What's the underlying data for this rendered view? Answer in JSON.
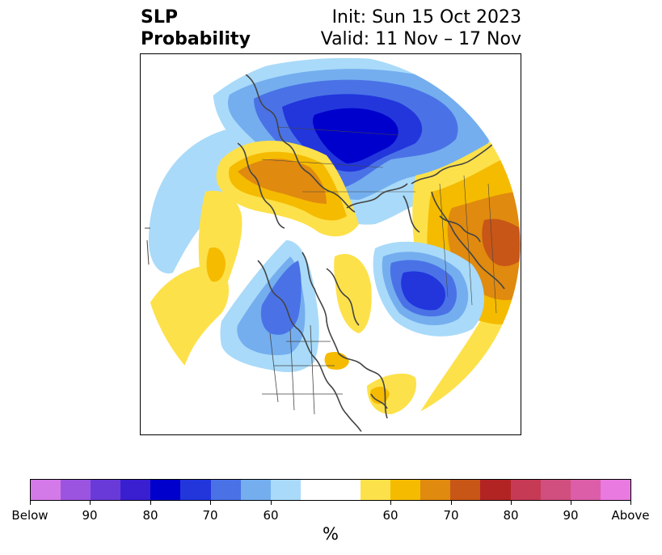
{
  "title": {
    "left_line1": "SLP",
    "left_line2": "Probability",
    "right_line1": "Init: Sun 15 Oct 2023",
    "right_line2": "Valid: 11 Nov – 17 Nov"
  },
  "colors": {
    "below": [
      "#d47ae8",
      "#9b54e0",
      "#6a3ad8",
      "#3a1fd0",
      "#0000cc",
      "#2236dc",
      "#4a72e6",
      "#74aeef",
      "#a9daf9"
    ],
    "neutral": "#ffffff",
    "above": [
      "#fde14a",
      "#f5bb00",
      "#e08a0f",
      "#c85617",
      "#b22424",
      "#c63a55",
      "#d04f7f",
      "#dc5ea8",
      "#e87ae0"
    ],
    "coastline": "#444444"
  },
  "colorbar": {
    "unit_label": "%",
    "tick_labels": [
      "Below",
      "90",
      "80",
      "70",
      "60",
      "60",
      "70",
      "80",
      "90",
      "Above"
    ]
  }
}
